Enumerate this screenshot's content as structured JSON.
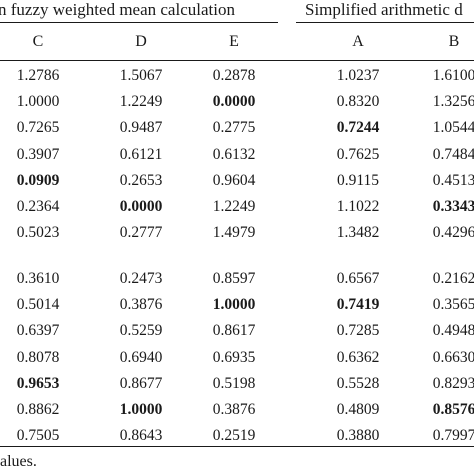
{
  "header": {
    "left_group": "n fuzzy weighted mean calculation",
    "right_group": "Simplified arithmetic d"
  },
  "columns": [
    "C",
    "D",
    "E",
    "A",
    "B"
  ],
  "block1": [
    [
      "1.2786",
      "1.5067",
      "0.2878",
      "1.0237",
      "1.6100"
    ],
    [
      "1.0000",
      "1.2249",
      "0.0000",
      "0.8320",
      "1.3256"
    ],
    [
      "0.7265",
      "0.9487",
      "0.2775",
      "0.7244",
      "1.0544"
    ],
    [
      "0.3907",
      "0.6121",
      "0.6132",
      "0.7625",
      "0.7484"
    ],
    [
      "0.0909",
      "0.2653",
      "0.9604",
      "0.9115",
      "0.4513"
    ],
    [
      "0.2364",
      "0.0000",
      "1.2249",
      "1.1022",
      "0.3343"
    ],
    [
      "0.5023",
      "0.2777",
      "1.4979",
      "1.3482",
      "0.4296"
    ]
  ],
  "block2": [
    [
      "0.3610",
      "0.2473",
      "0.8597",
      "0.6567",
      "0.2162"
    ],
    [
      "0.5014",
      "0.3876",
      "1.0000",
      "0.7419",
      "0.3565"
    ],
    [
      "0.6397",
      "0.5259",
      "0.8617",
      "0.7285",
      "0.4948"
    ],
    [
      "0.8078",
      "0.6940",
      "0.6935",
      "0.6362",
      "0.6630"
    ],
    [
      "0.9653",
      "0.8677",
      "0.5198",
      "0.5528",
      "0.8293"
    ],
    [
      "0.8862",
      "1.0000",
      "0.3876",
      "0.4809",
      "0.8576"
    ],
    [
      "0.7505",
      "0.8643",
      "0.2519",
      "0.3880",
      "0.7997"
    ]
  ],
  "bold_cells": {
    "block1": [
      [
        1,
        2
      ],
      [
        2,
        3
      ],
      [
        4,
        0
      ],
      [
        5,
        1
      ],
      [
        5,
        4
      ]
    ],
    "block2": [
      [
        1,
        2
      ],
      [
        1,
        3
      ],
      [
        4,
        0
      ],
      [
        5,
        1
      ],
      [
        5,
        4
      ]
    ]
  },
  "footnote": "alues."
}
